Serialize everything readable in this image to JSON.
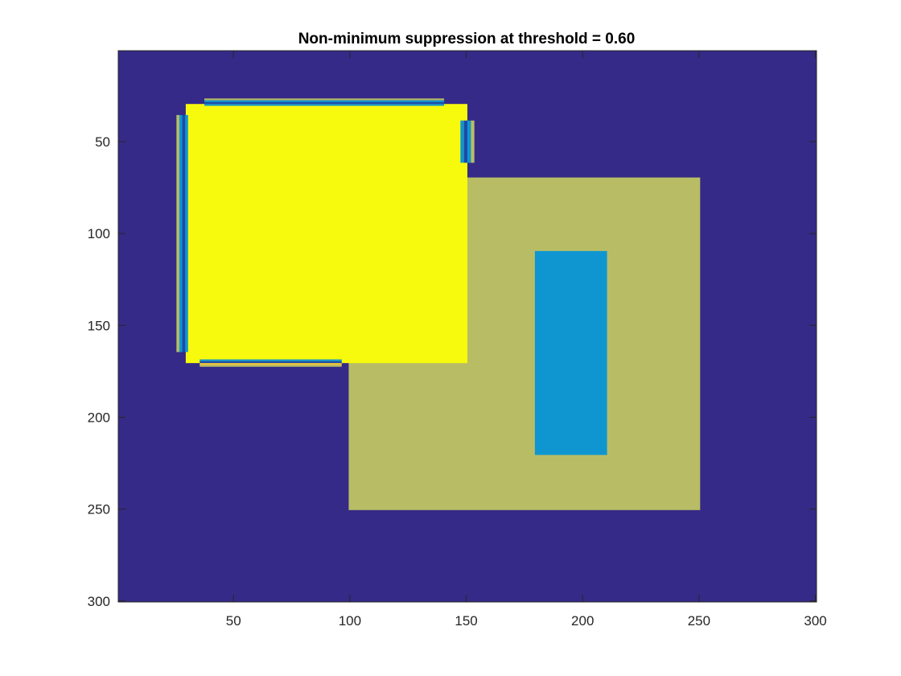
{
  "figure": {
    "title": "Non-minimum suppression at threshold = 0.60"
  },
  "chart_data": {
    "type": "heatmap",
    "title": "Non-minimum suppression at threshold = 0.60",
    "xlabel": "",
    "ylabel": "",
    "xlim": [
      0.5,
      300.5
    ],
    "ylim": [
      0.5,
      300.5
    ],
    "y_reversed": true,
    "grid": false,
    "xticks": [
      50,
      100,
      150,
      200,
      250,
      300
    ],
    "yticks": [
      50,
      100,
      150,
      200,
      250,
      300
    ],
    "background_color": "#352A87",
    "regions": [
      {
        "name": "outer-square",
        "x": [
          100,
          250
        ],
        "y": [
          70,
          250
        ],
        "color": "#B8BD65"
      },
      {
        "name": "inner-rectangle",
        "x": [
          180,
          210
        ],
        "y": [
          110,
          220
        ],
        "color": "#0F96D0"
      },
      {
        "name": "bright-square",
        "x": [
          30,
          150
        ],
        "y": [
          30,
          170
        ],
        "color": "#F8FA0D"
      }
    ],
    "edge_bands": [
      {
        "side": "top",
        "x": [
          38,
          140
        ],
        "y": [
          27,
          30
        ],
        "colors": [
          "#B8BD65",
          "#0F96D0",
          "#1C4BA8",
          "#0F96D0"
        ]
      },
      {
        "side": "bottom",
        "x": [
          36,
          96
        ],
        "y": [
          169,
          172
        ],
        "colors": [
          "#0F96D0",
          "#1C4BA8",
          "#F2C73A",
          "#B8BD65"
        ]
      },
      {
        "side": "left",
        "x": [
          26,
          30
        ],
        "y": [
          36,
          164
        ],
        "colors": [
          "#B8BD65",
          "#0F96D0",
          "#1C4BA8",
          "#0F96D0"
        ]
      },
      {
        "side": "right",
        "x": [
          148,
          153
        ],
        "y": [
          39,
          61
        ],
        "colors": [
          "#0F96D0",
          "#1C4BA8",
          "#0F96D0",
          "#B8BD65"
        ]
      }
    ]
  }
}
